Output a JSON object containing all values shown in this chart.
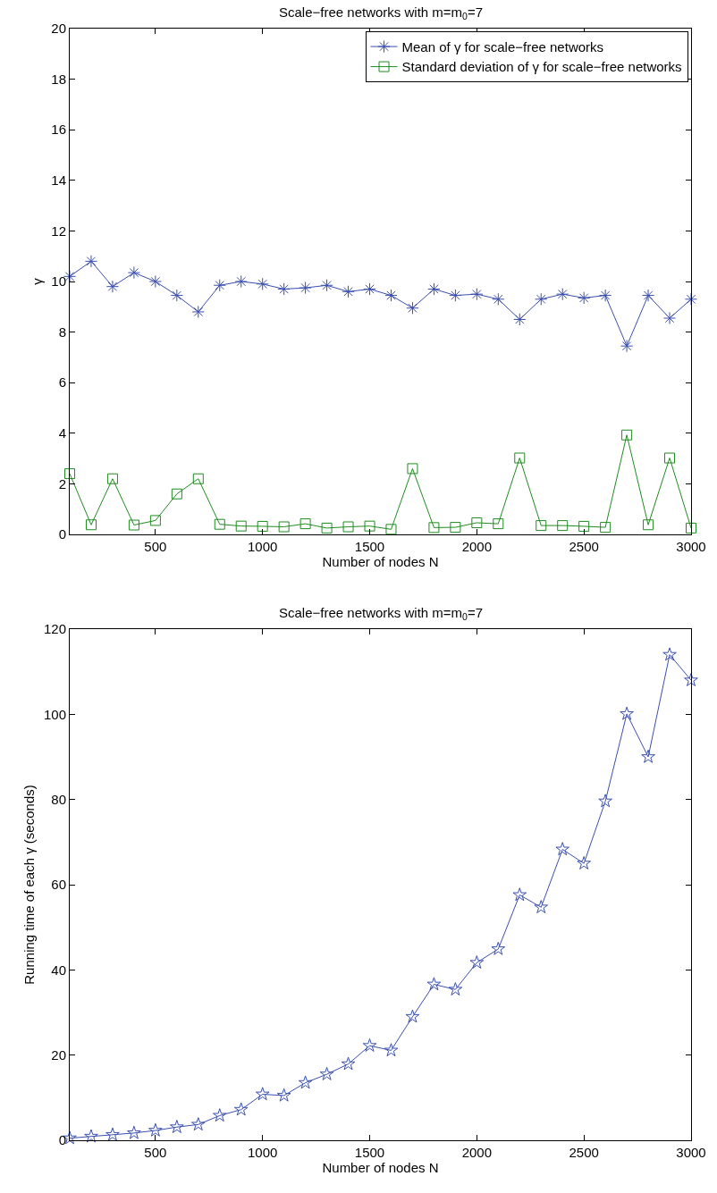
{
  "chart_data": [
    {
      "type": "line",
      "title": "Scale−free networks with m=m$_{0}$=7",
      "xlabel": "Number of nodes N",
      "ylabel": "γ",
      "x": [
        100,
        200,
        300,
        400,
        500,
        600,
        700,
        800,
        900,
        1000,
        1100,
        1200,
        1300,
        1400,
        1500,
        1600,
        1700,
        1800,
        1900,
        2000,
        2100,
        2200,
        2300,
        2400,
        2500,
        2600,
        2700,
        2800,
        2900,
        3000
      ],
      "xlim": [
        100,
        3000
      ],
      "xticks": [
        500,
        1000,
        1500,
        2000,
        2500,
        3000
      ],
      "ylim": [
        0,
        20
      ],
      "yticks": [
        0,
        2,
        4,
        6,
        8,
        10,
        12,
        14,
        16,
        18,
        20
      ],
      "legend": "top right",
      "series": [
        {
          "name": "Mean of γ for scale−free networks",
          "color": "#3a4fb0",
          "marker": "cross",
          "values": [
            10.2,
            10.8,
            9.8,
            10.35,
            10.0,
            9.45,
            8.8,
            9.85,
            10.0,
            9.9,
            9.7,
            9.75,
            9.85,
            9.6,
            9.7,
            9.45,
            8.95,
            9.7,
            9.45,
            9.5,
            9.3,
            8.5,
            9.3,
            9.5,
            9.35,
            9.45,
            7.45,
            9.45,
            8.55,
            9.3
          ]
        },
        {
          "name": "Standard deviation of γ for scale−free networks",
          "color": "#1f8c1f",
          "marker": "square",
          "values": [
            2.4,
            0.38,
            2.2,
            0.37,
            0.55,
            1.6,
            2.2,
            0.4,
            0.33,
            0.32,
            0.3,
            0.42,
            0.25,
            0.3,
            0.33,
            0.2,
            2.6,
            0.27,
            0.28,
            0.46,
            0.42,
            3.02,
            0.35,
            0.35,
            0.32,
            0.28,
            3.93,
            0.38,
            3.02,
            0.25
          ]
        }
      ]
    },
    {
      "type": "line",
      "title": "Scale−free networks with m=m$_{0}$=7",
      "xlabel": "Number of nodes N",
      "ylabel": "Running time of each γ (seconds)",
      "x": [
        100,
        200,
        300,
        400,
        500,
        600,
        700,
        800,
        900,
        1000,
        1100,
        1200,
        1300,
        1400,
        1500,
        1600,
        1700,
        1800,
        1900,
        2000,
        2100,
        2200,
        2300,
        2400,
        2500,
        2600,
        2700,
        2800,
        2900,
        3000
      ],
      "xlim": [
        100,
        3000
      ],
      "xticks": [
        500,
        1000,
        1500,
        2000,
        2500,
        3000
      ],
      "ylim": [
        0,
        120
      ],
      "yticks": [
        0,
        20,
        40,
        60,
        80,
        100,
        120
      ],
      "legend": false,
      "series": [
        {
          "color": "#3a4fb0",
          "marker": "star",
          "values": [
            0.5,
            0.9,
            1.3,
            1.7,
            2.3,
            3.1,
            3.7,
            5.8,
            7.2,
            10.8,
            10.5,
            13.5,
            15.5,
            17.9,
            22.2,
            21.1,
            29,
            36.6,
            35.4,
            41.7,
            44.9,
            57.6,
            54.7,
            68.3,
            65,
            79.6,
            100.1,
            90,
            114,
            108
          ]
        }
      ]
    }
  ]
}
